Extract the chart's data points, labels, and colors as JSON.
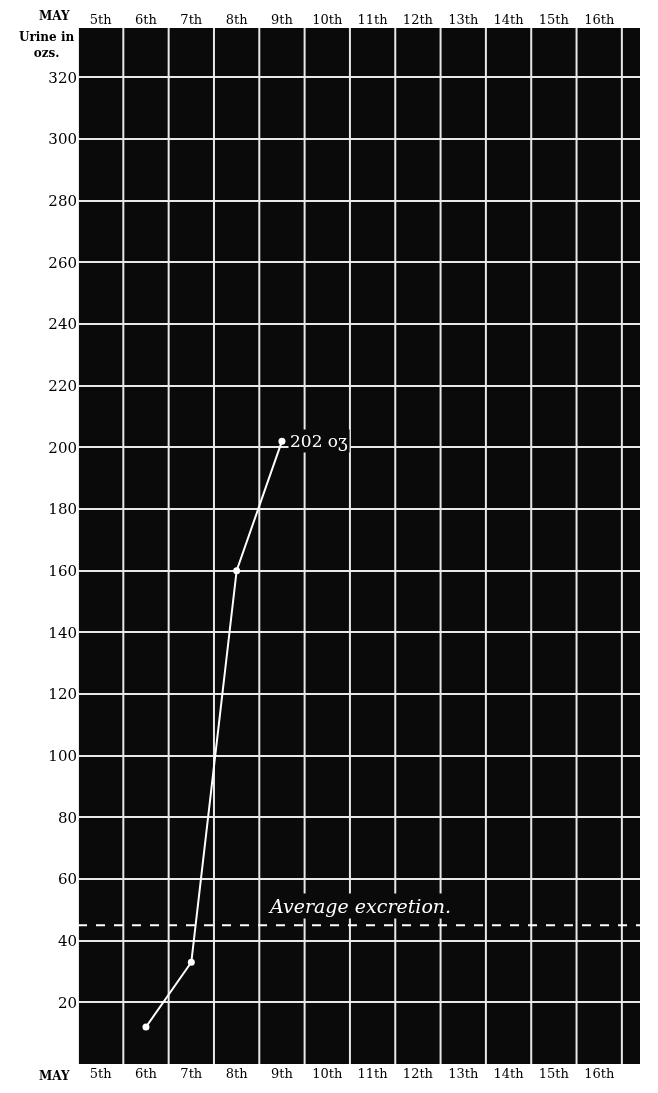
{
  "chart_data": {
    "type": "line",
    "xlabel": "MAY",
    "x2label": "MAY",
    "ylabel": "Urine in ozs.",
    "categories": [
      "5th",
      "6th",
      "7th",
      "8th",
      "9th",
      "10th",
      "11th",
      "12th",
      "13th",
      "14th",
      "15th",
      "16th"
    ],
    "series": [
      {
        "color": "#ffffff",
        "values": [
          null,
          12,
          33,
          160,
          202,
          null,
          null,
          null,
          null,
          null,
          null,
          null
        ],
        "value_labels": [
          null,
          null,
          null,
          null,
          "202 oʒ",
          null,
          null,
          null,
          null,
          null,
          null,
          null
        ]
      }
    ],
    "ylim": [
      0,
      336
    ],
    "yticks": [
      20,
      40,
      60,
      80,
      100,
      120,
      140,
      160,
      180,
      200,
      220,
      240,
      260,
      280,
      300,
      320
    ],
    "ref_lines": [
      {
        "axis": "y",
        "value": 45,
        "label": "Average excretion.",
        "color": "#ffffff",
        "line_style": "dashed"
      }
    ],
    "grid": true,
    "marker": "circle",
    "line_style": "solid"
  }
}
